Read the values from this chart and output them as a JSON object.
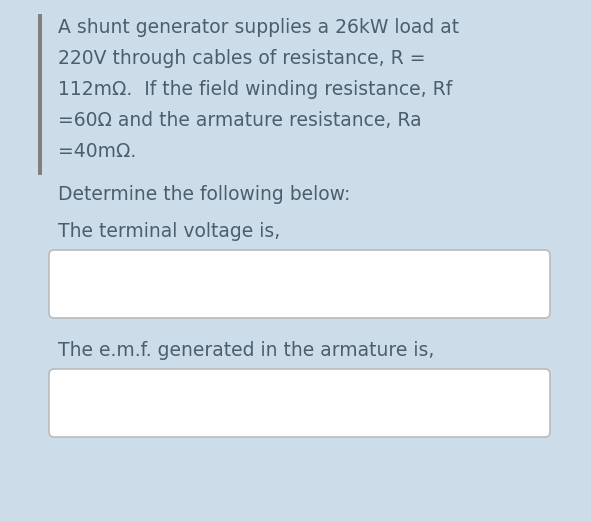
{
  "background_color": "#ccdde9",
  "left_bar_color": "#808080",
  "text_color": "#4a5e6e",
  "font_size_body": 13.5,
  "line1": "A shunt generator supplies a 26kW load at",
  "line2": "220V through cables of resistance, R =",
  "line3": "112mΩ.  If the field winding resistance, Rf",
  "line4": "=60Ω and the armature resistance, Ra",
  "line5": "=40mΩ.",
  "line6": "Determine the following below:",
  "line7": "The terminal voltage is,",
  "line8": "The e.m.f. generated in the armature is,",
  "box_bg": "#ffffff",
  "box_edge_color": "#bbbbbb",
  "fig_width": 5.91,
  "fig_height": 5.21,
  "dpi": 100
}
